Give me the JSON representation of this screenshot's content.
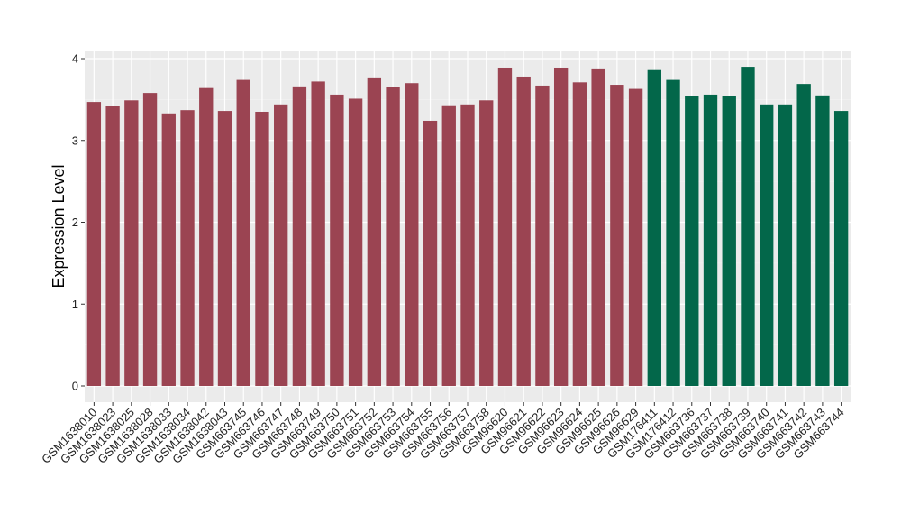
{
  "chart_data": {
    "type": "bar",
    "title": "",
    "xlabel": "",
    "ylabel": "Expression Level",
    "ylim": [
      0,
      4.05
    ],
    "yticks": [
      0,
      1,
      2,
      3,
      4
    ],
    "grid": true,
    "background": "#ebebeb",
    "gridline_color": "#ffffff",
    "categories": [
      "GSM1638010",
      "GSM1638023",
      "GSM1638025",
      "GSM1638028",
      "GSM1638033",
      "GSM1638034",
      "GSM1638042",
      "GSM1638043",
      "GSM663745",
      "GSM663746",
      "GSM663747",
      "GSM663748",
      "GSM663749",
      "GSM663750",
      "GSM663751",
      "GSM663752",
      "GSM663753",
      "GSM663754",
      "GSM663755",
      "GSM663756",
      "GSM663757",
      "GSM663758",
      "GSM96620",
      "GSM96621",
      "GSM96622",
      "GSM96623",
      "GSM96624",
      "GSM96625",
      "GSM96626",
      "GSM96629",
      "GSM176411",
      "GSM176412",
      "GSM663736",
      "GSM663737",
      "GSM663738",
      "GSM663739",
      "GSM663740",
      "GSM663741",
      "GSM663742",
      "GSM663743",
      "GSM663744"
    ],
    "values": [
      3.47,
      3.42,
      3.49,
      3.58,
      3.33,
      3.37,
      3.64,
      3.36,
      3.74,
      3.35,
      3.44,
      3.66,
      3.72,
      3.56,
      3.51,
      3.77,
      3.65,
      3.7,
      3.24,
      3.43,
      3.44,
      3.49,
      3.89,
      3.78,
      3.67,
      3.89,
      3.71,
      3.88,
      3.68,
      3.63,
      3.86,
      3.74,
      3.54,
      3.56,
      3.54,
      3.9,
      3.44,
      3.44,
      3.69,
      3.55,
      3.36
    ],
    "groups": [
      {
        "color": "#9b4452",
        "count": 30
      },
      {
        "color": "#03674a",
        "count": 11
      }
    ]
  }
}
